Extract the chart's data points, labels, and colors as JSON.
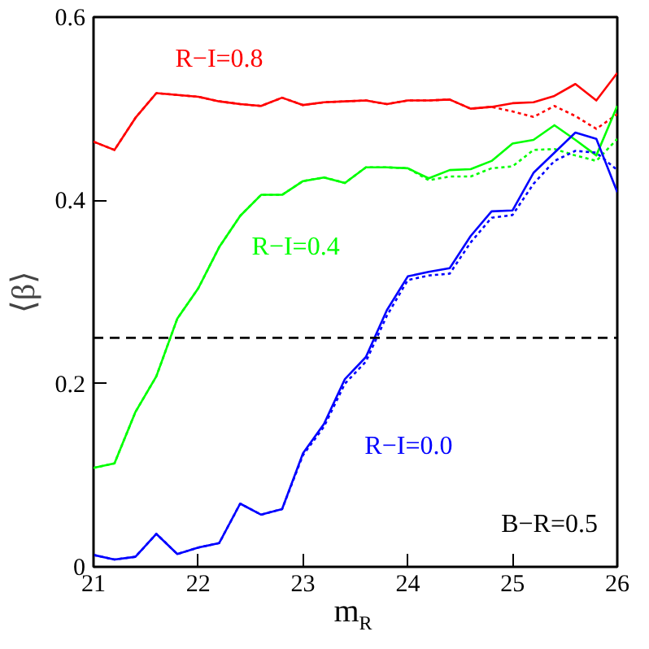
{
  "chart_data": {
    "type": "line",
    "xlabel": "m$_{R}$",
    "ylabel": "⟨β⟩",
    "x": [
      21,
      21.2,
      21.4,
      21.6,
      21.8,
      22,
      22.2,
      22.4,
      22.6,
      22.8,
      23,
      23.2,
      23.4,
      23.6,
      23.8,
      24,
      24.2,
      24.4,
      24.6,
      24.8,
      25,
      25.2,
      25.4,
      25.6,
      25.8,
      26
    ],
    "series": [
      {
        "name": "R−I=0.8",
        "color": "#ff0000",
        "line_style": "solid",
        "values": [
          0.464,
          0.455,
          0.49,
          0.517,
          0.515,
          0.513,
          0.508,
          0.505,
          0.503,
          0.512,
          0.504,
          0.507,
          0.508,
          0.509,
          0.505,
          0.509,
          0.509,
          0.51,
          0.5,
          0.502,
          0.506,
          0.507,
          0.514,
          0.527,
          0.509,
          0.539
        ]
      },
      {
        "color": "#ff0000",
        "line_style": "dotted",
        "values": [
          0.464,
          0.455,
          0.49,
          0.517,
          0.515,
          0.513,
          0.508,
          0.505,
          0.503,
          0.512,
          0.504,
          0.507,
          0.508,
          0.509,
          0.505,
          0.509,
          0.509,
          0.51,
          0.5,
          0.502,
          0.497,
          0.491,
          0.503,
          0.492,
          0.478,
          0.494
        ]
      },
      {
        "name": "R−I=0.4",
        "color": "#00ff00",
        "line_style": "solid",
        "values": [
          0.108,
          0.113,
          0.169,
          0.208,
          0.271,
          0.304,
          0.349,
          0.383,
          0.406,
          0.406,
          0.421,
          0.425,
          0.419,
          0.436,
          0.436,
          0.435,
          0.424,
          0.433,
          0.434,
          0.443,
          0.462,
          0.466,
          0.482,
          0.466,
          0.449,
          0.503
        ]
      },
      {
        "color": "#00ff00",
        "line_style": "dotted",
        "values": [
          0.108,
          0.113,
          0.169,
          0.208,
          0.271,
          0.304,
          0.349,
          0.383,
          0.406,
          0.406,
          0.421,
          0.425,
          0.419,
          0.436,
          0.436,
          0.435,
          0.422,
          0.426,
          0.426,
          0.435,
          0.437,
          0.455,
          0.456,
          0.449,
          0.443,
          0.467
        ]
      },
      {
        "name": "R−I=0.0",
        "color": "#0000ff",
        "line_style": "solid",
        "values": [
          0.013,
          0.008,
          0.011,
          0.036,
          0.014,
          0.021,
          0.026,
          0.069,
          0.057,
          0.063,
          0.124,
          0.156,
          0.205,
          0.229,
          0.28,
          0.317,
          0.322,
          0.326,
          0.361,
          0.388,
          0.389,
          0.43,
          0.452,
          0.474,
          0.467,
          0.409
        ]
      },
      {
        "color": "#0000ff",
        "line_style": "dotted",
        "values": [
          0.013,
          0.008,
          0.011,
          0.036,
          0.014,
          0.021,
          0.026,
          0.069,
          0.057,
          0.063,
          0.122,
          0.153,
          0.2,
          0.224,
          0.274,
          0.313,
          0.318,
          0.32,
          0.354,
          0.381,
          0.384,
          0.418,
          0.443,
          0.454,
          0.452,
          0.433
        ]
      }
    ],
    "ref_lines": [
      {
        "axis": "y",
        "value": 0.25,
        "color": "#000000",
        "line_style": "dashed"
      }
    ],
    "annotations": [
      "B−R=0.5"
    ],
    "xlim": [
      21,
      26
    ],
    "ylim": [
      0,
      0.6
    ],
    "xticks": [
      21,
      22,
      23,
      24,
      25,
      26
    ],
    "yticks": [
      0,
      0.2,
      0.4,
      0.6
    ],
    "grid": false
  }
}
